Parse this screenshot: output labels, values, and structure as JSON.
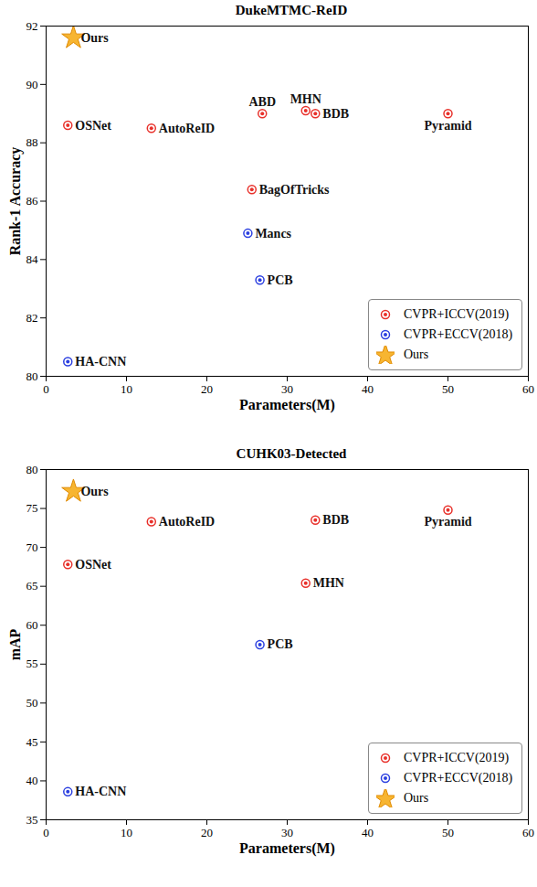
{
  "chart_data": [
    {
      "type": "scatter",
      "title": "DukeMTMC-ReID",
      "x_label": "Parameters(M)",
      "y_label": "Rank-1 Accuracy",
      "xlim": [
        0,
        60
      ],
      "xticks": [
        0,
        10,
        20,
        30,
        40,
        50,
        60
      ],
      "ylim": [
        80,
        92
      ],
      "yticks": [
        80,
        82,
        84,
        86,
        88,
        90,
        92
      ],
      "legend": "lower right",
      "series": [
        {
          "name": "CVPR+ICCV(2019)",
          "color": "#e8302a",
          "marker": "circle",
          "labels": [
            "OSNet",
            "AutoReID",
            "ABD",
            "MHN",
            "BDB",
            "Pyramid",
            "BagOfTricks"
          ],
          "x": [
            2.7,
            13.1,
            26.9,
            32.3,
            33.5,
            50.0,
            25.6
          ],
          "values": [
            88.6,
            88.5,
            89.0,
            89.1,
            89.0,
            89.0,
            86.4
          ]
        },
        {
          "name": "CVPR+ECCV(2018)",
          "color": "#2b3fe0",
          "marker": "circle",
          "labels": [
            "Mancs",
            "PCB",
            "HA-CNN"
          ],
          "x": [
            25.1,
            26.6,
            2.7
          ],
          "values": [
            84.9,
            83.3,
            80.5
          ]
        },
        {
          "name": "Ours",
          "color": "#f7b531",
          "marker": "star",
          "labels": [
            "Ours"
          ],
          "x": [
            3.4
          ],
          "values": [
            91.6
          ]
        }
      ]
    },
    {
      "type": "scatter",
      "title": "CUHK03-Detected",
      "x_label": "Parameters(M)",
      "y_label": "mAP",
      "xlim": [
        0,
        60
      ],
      "xticks": [
        0,
        10,
        20,
        30,
        40,
        50,
        60
      ],
      "ylim": [
        35,
        80
      ],
      "yticks": [
        35,
        40,
        45,
        50,
        55,
        60,
        65,
        70,
        75,
        80
      ],
      "legend": "lower right",
      "series": [
        {
          "name": "CVPR+ICCV(2019)",
          "color": "#e8302a",
          "marker": "circle",
          "labels": [
            "AutoReID",
            "BDB",
            "Pyramid",
            "OSNet",
            "MHN"
          ],
          "x": [
            13.1,
            33.5,
            50.0,
            2.7,
            32.3
          ],
          "values": [
            73.3,
            73.5,
            74.8,
            67.8,
            65.4
          ]
        },
        {
          "name": "CVPR+ECCV(2018)",
          "color": "#2b3fe0",
          "marker": "circle",
          "labels": [
            "PCB",
            "HA-CNN"
          ],
          "x": [
            26.6,
            2.7
          ],
          "values": [
            57.5,
            38.6
          ]
        },
        {
          "name": "Ours",
          "color": "#f7b531",
          "marker": "star",
          "labels": [
            "Ours"
          ],
          "x": [
            3.4
          ],
          "values": [
            77.2
          ]
        }
      ]
    }
  ]
}
